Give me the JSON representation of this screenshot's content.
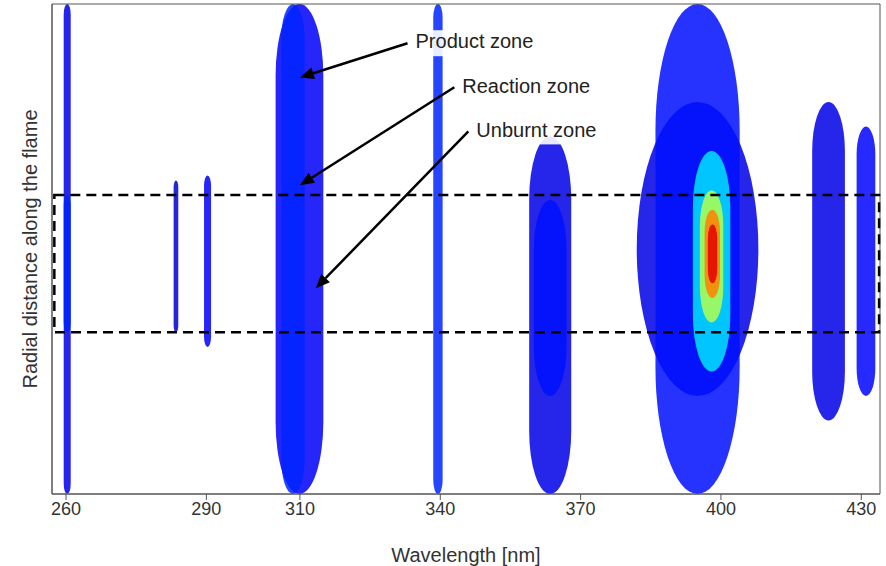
{
  "chart_data": {
    "type": "heatmap",
    "x_label": "Wavelength [nm]",
    "y_label": "Radial distance along the flame",
    "xlim": [
      257,
      434
    ],
    "xticks": [
      260,
      290,
      310,
      340,
      370,
      400,
      430
    ],
    "ylim": [
      0,
      100
    ],
    "tick_labels": "x",
    "cells": [
      {
        "x": [
          259.5,
          261
        ],
        "y": [
          0,
          100
        ],
        "intensity": 0.1
      },
      {
        "x": [
          259.5,
          261
        ],
        "y": [
          33,
          61
        ],
        "intensity": 0.16
      },
      {
        "x": [
          283,
          284
        ],
        "y": [
          33,
          64
        ],
        "intensity": 0.08
      },
      {
        "x": [
          289.5,
          291
        ],
        "y": [
          30,
          65
        ],
        "intensity": 0.12
      },
      {
        "x": [
          304.8,
          315
        ],
        "y": [
          0,
          100
        ],
        "intensity": 0.12
      },
      {
        "x": [
          306,
          311
        ],
        "y": [
          0,
          100
        ],
        "intensity": 0.16
      },
      {
        "x": [
          338.5,
          340.5
        ],
        "y": [
          0,
          100
        ],
        "intensity": 0.16
      },
      {
        "x": [
          359,
          368
        ],
        "y": [
          0,
          73
        ],
        "intensity": 0.1
      },
      {
        "x": [
          360,
          367
        ],
        "y": [
          20,
          60
        ],
        "intensity": 0.14
      },
      {
        "x": [
          382,
          408
        ],
        "y": [
          20,
          80
        ],
        "intensity": 0.1
      },
      {
        "x": [
          386,
          404
        ],
        "y": [
          0,
          100
        ],
        "intensity": 0.14
      },
      {
        "x": [
          394,
          402
        ],
        "y": [
          25,
          70
        ],
        "intensity": 0.35
      },
      {
        "x": [
          395.5,
          400.5
        ],
        "y": [
          35,
          62
        ],
        "intensity": 0.55
      },
      {
        "x": [
          396.5,
          399.8
        ],
        "y": [
          40,
          58
        ],
        "intensity": 0.75
      },
      {
        "x": [
          397.2,
          399.2
        ],
        "y": [
          43,
          55
        ],
        "intensity": 0.9
      },
      {
        "x": [
          419.5,
          426.5
        ],
        "y": [
          15,
          80
        ],
        "intensity": 0.1
      },
      {
        "x": [
          429,
          433
        ],
        "y": [
          20,
          75
        ],
        "intensity": 0.13
      }
    ],
    "region": {
      "x": [
        257.5,
        433.8
      ],
      "y": [
        33,
        61
      ]
    },
    "annotations": [
      {
        "text": "Product zone",
        "xy": [
          310,
          85
        ],
        "xytext": [
          333,
          92
        ]
      },
      {
        "text": "Reaction zone",
        "xy": [
          310,
          63
        ],
        "xytext": [
          343,
          83
        ]
      },
      {
        "text": "Unburnt zone",
        "xy": [
          313.4,
          42
        ],
        "xytext": [
          346,
          74
        ]
      }
    ]
  }
}
